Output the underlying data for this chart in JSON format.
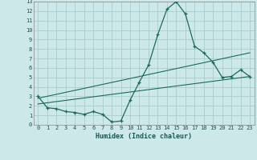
{
  "title": "",
  "xlabel": "Humidex (Indice chaleur)",
  "bg_color": "#cce8e8",
  "grid_color": "#aacccc",
  "line_color": "#1a6b5a",
  "xlim": [
    -0.5,
    23.5
  ],
  "ylim": [
    0,
    13
  ],
  "xticks": [
    0,
    1,
    2,
    3,
    4,
    5,
    6,
    7,
    8,
    9,
    10,
    11,
    12,
    13,
    14,
    15,
    16,
    17,
    18,
    19,
    20,
    21,
    22,
    23
  ],
  "yticks": [
    0,
    1,
    2,
    3,
    4,
    5,
    6,
    7,
    8,
    9,
    10,
    11,
    12,
    13
  ],
  "line1_x": [
    0,
    1,
    2,
    3,
    4,
    5,
    6,
    7,
    8,
    9,
    10,
    11,
    12,
    13,
    14,
    15,
    16,
    17,
    18,
    19,
    20,
    21,
    22,
    23
  ],
  "line1_y": [
    3.0,
    1.8,
    1.7,
    1.4,
    1.3,
    1.1,
    1.4,
    1.1,
    0.3,
    0.4,
    2.6,
    4.5,
    6.3,
    9.5,
    12.2,
    13.0,
    11.7,
    8.3,
    7.6,
    6.6,
    5.0,
    5.1,
    5.8,
    5.1
  ],
  "line2_x": [
    0,
    23
  ],
  "line2_y": [
    2.8,
    7.6
  ],
  "line3_x": [
    0,
    23
  ],
  "line3_y": [
    2.2,
    5.1
  ]
}
